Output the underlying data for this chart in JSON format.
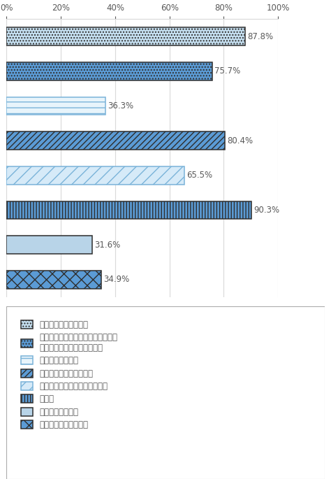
{
  "values": [
    87.8,
    75.7,
    36.3,
    80.4,
    65.5,
    90.3,
    31.6,
    34.9
  ],
  "value_labels": [
    "87.8%",
    "75.7%",
    "36.3%",
    "80.4%",
    "65.5%",
    "90.3%",
    "31.6%",
    "34.9%"
  ],
  "face_colors": [
    "#c5dff0",
    "#5b9bd5",
    "#e8f4fb",
    "#5b9bd5",
    "#d6eaf8",
    "#5b9bd5",
    "#b8d4e8",
    "#5b9bd5"
  ],
  "edge_colors": [
    "#2e2e2e",
    "#2e2e2e",
    "#7ab3d9",
    "#2e2e2e",
    "#7ab3d9",
    "#2e2e2e",
    "#2e2e2e",
    "#2e2e2e"
  ],
  "xlim": [
    0,
    100
  ],
  "xticks": [
    0,
    20,
    40,
    60,
    80,
    100
  ],
  "xticklabels": [
    "0%",
    "20%",
    "40%",
    "60%",
    "80%",
    "100%"
  ],
  "legend_labels": [
    "コンビニエンスストア",
    "食料品店（スーパーマーケット・ド\nラッグストア（薇局）など）",
    "かかりつけの病院",
    "公民館・小学校・保育園",
    "金融機関（銀行・ＡＴＭなど）",
    "バス停",
    "家族や親戺の自宅",
    "交流のある友人の自宅"
  ],
  "bg_color": "#ffffff",
  "text_color": "#595959",
  "grid_color": "#d9d9d9",
  "figsize": [
    4.74,
    6.85
  ],
  "dpi": 100
}
